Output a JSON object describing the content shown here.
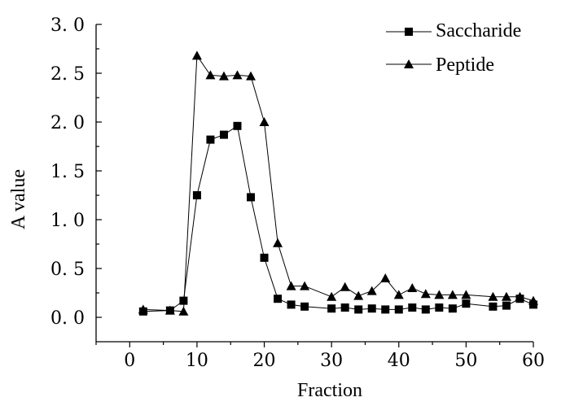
{
  "chart_data": {
    "type": "line",
    "xlabel": "Fraction",
    "ylabel": "A value",
    "xlim": [
      -5,
      60
    ],
    "ylim": [
      -0.25,
      3.0
    ],
    "xticks": [
      0,
      10,
      20,
      30,
      40,
      50,
      60
    ],
    "yticks": [
      0.0,
      0.5,
      1.0,
      1.5,
      2.0,
      2.5,
      3.0
    ],
    "xtick_labels": [
      "0",
      "10",
      "20",
      "30",
      "40",
      "50",
      "60"
    ],
    "ytick_labels": [
      "0. 0",
      "0. 5",
      "1. 0",
      "1. 5",
      "2. 0",
      "2. 5",
      "3. 0"
    ],
    "legend_position": "top-right",
    "grid": false,
    "series": [
      {
        "name": "Saccharide",
        "marker": "square",
        "x": [
          2,
          6,
          8,
          10,
          12,
          14,
          16,
          18,
          20,
          22,
          24,
          26,
          30,
          32,
          34,
          36,
          38,
          40,
          42,
          44,
          46,
          48,
          50,
          54,
          56,
          58,
          60
        ],
        "y": [
          0.06,
          0.07,
          0.17,
          1.25,
          1.82,
          1.87,
          1.96,
          1.23,
          0.61,
          0.19,
          0.13,
          0.11,
          0.09,
          0.1,
          0.08,
          0.09,
          0.08,
          0.08,
          0.1,
          0.08,
          0.1,
          0.09,
          0.14,
          0.11,
          0.12,
          0.19,
          0.13
        ]
      },
      {
        "name": "Peptide",
        "marker": "triangle",
        "x": [
          2,
          6,
          8,
          10,
          12,
          14,
          16,
          18,
          20,
          22,
          24,
          26,
          30,
          32,
          34,
          36,
          38,
          40,
          42,
          44,
          46,
          48,
          50,
          54,
          56,
          58,
          60
        ],
        "y": [
          0.08,
          0.07,
          0.06,
          2.68,
          2.48,
          2.47,
          2.48,
          2.47,
          2.0,
          0.76,
          0.32,
          0.32,
          0.21,
          0.31,
          0.22,
          0.27,
          0.4,
          0.23,
          0.3,
          0.24,
          0.23,
          0.23,
          0.23,
          0.21,
          0.21,
          0.21,
          0.17
        ]
      }
    ]
  }
}
